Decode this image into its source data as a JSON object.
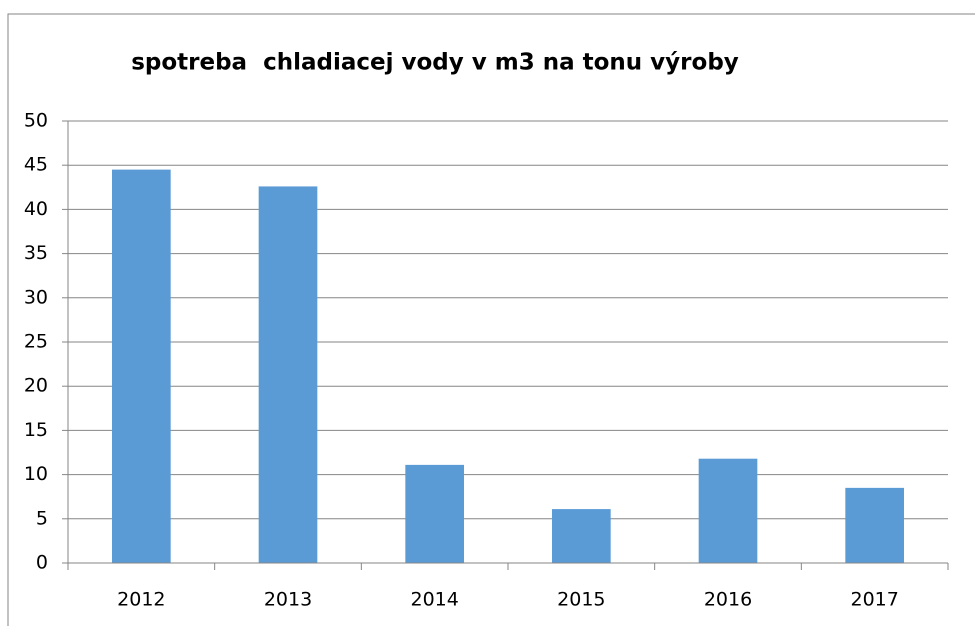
{
  "chart_data": {
    "type": "bar",
    "title": "spotreba  chladiacej vody v m3 na tonu výroby",
    "categories": [
      "2012",
      "2013",
      "2014",
      "2015",
      "2016",
      "2017"
    ],
    "values": [
      44.5,
      42.6,
      11.1,
      6.1,
      11.8,
      8.5
    ],
    "color": "#5b9bd5",
    "ylim": [
      0,
      50
    ],
    "yticks": [
      0,
      5,
      10,
      15,
      20,
      25,
      30,
      35,
      40,
      45,
      50
    ],
    "grid": true
  }
}
